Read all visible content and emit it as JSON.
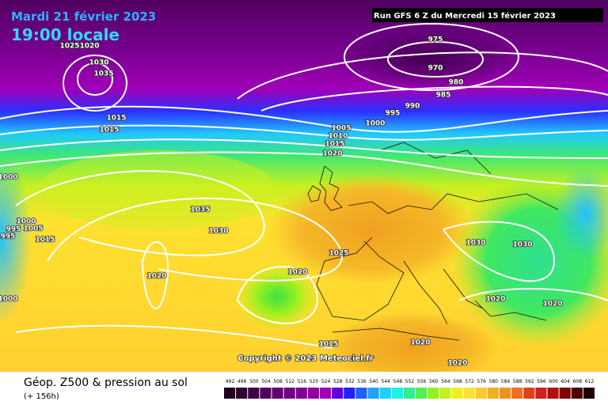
{
  "header": {
    "date": "Mardi 21 février 2023",
    "time": "19:00 locale",
    "run": "Run GFS 6 Z du Mercredi 15 février 2023"
  },
  "map": {
    "isobar_labels": [
      975,
      970,
      980,
      985,
      990,
      995,
      1000,
      1005,
      1010,
      1015,
      1020,
      1025,
      1020,
      1030,
      1035,
      1015,
      1015,
      1000,
      1035,
      1030,
      1025,
      1020,
      1020,
      1030,
      1030,
      1020,
      1020,
      1000,
      995,
      1005,
      995,
      1015,
      1000,
      1015,
      1020,
      1020
    ],
    "copyright": "Copyright © 2023 Meteociel.fr"
  },
  "legend": {
    "title": "Géop. Z500 & pression au sol",
    "lead": "(+ 156h)",
    "levels": [
      492,
      496,
      500,
      504,
      508,
      512,
      516,
      520,
      524,
      528,
      532,
      536,
      540,
      544,
      548,
      552,
      556,
      560,
      564,
      568,
      572,
      576,
      580,
      584,
      588,
      592,
      596,
      600,
      604,
      608,
      612
    ],
    "colors": [
      "#200020",
      "#300030",
      "#400048",
      "#500060",
      "#600070",
      "#700080",
      "#800090",
      "#9000a0",
      "#a000b8",
      "#6000e0",
      "#2020ff",
      "#2060ff",
      "#20a0ff",
      "#20d0ff",
      "#20f0e0",
      "#30f090",
      "#50f050",
      "#90f020",
      "#c8f020",
      "#f0f020",
      "#ffe030",
      "#ffc830",
      "#f0b020",
      "#f09020",
      "#f07020",
      "#e04020",
      "#d02020",
      "#b01010",
      "#800000",
      "#500000",
      "#200000"
    ]
  }
}
